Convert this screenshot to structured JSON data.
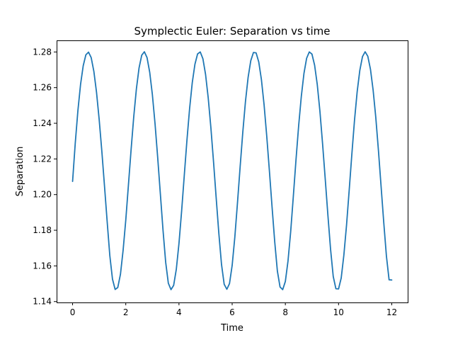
{
  "chart_data": {
    "type": "line",
    "title": "Symplectic Euler: Separation vs time",
    "xlabel": "Time",
    "ylabel": "Separation",
    "xlim": [
      -0.6,
      12.6
    ],
    "ylim": [
      1.1395,
      1.2865
    ],
    "xticks": [
      0,
      2,
      4,
      6,
      8,
      10,
      12
    ],
    "xtick_labels": [
      "0",
      "2",
      "4",
      "6",
      "8",
      "10",
      "12"
    ],
    "yticks": [
      1.14,
      1.16,
      1.18,
      1.2,
      1.22,
      1.24,
      1.26,
      1.28
    ],
    "ytick_labels": [
      "1.14",
      "1.16",
      "1.18",
      "1.20",
      "1.22",
      "1.24",
      "1.26",
      "1.28"
    ],
    "grid": false,
    "series": [
      {
        "color": "#1f77b4",
        "x": [
          0.0,
          0.1,
          0.2,
          0.3,
          0.4,
          0.5,
          0.6,
          0.7,
          0.8,
          0.9,
          1.0,
          1.1,
          1.2,
          1.3,
          1.4,
          1.5,
          1.6,
          1.7,
          1.8,
          1.9,
          2.0,
          2.1,
          2.2,
          2.3,
          2.4,
          2.5,
          2.6,
          2.7,
          2.8,
          2.9,
          3.0,
          3.1,
          3.2,
          3.3,
          3.4,
          3.5,
          3.6,
          3.7,
          3.8,
          3.9,
          4.0,
          4.1,
          4.2,
          4.3,
          4.4,
          4.5,
          4.6,
          4.7,
          4.8,
          4.9,
          5.0,
          5.1,
          5.2,
          5.3,
          5.4,
          5.5,
          5.6,
          5.7,
          5.8,
          5.9,
          6.0,
          6.1,
          6.2,
          6.3,
          6.4,
          6.5,
          6.6,
          6.7,
          6.8,
          6.9,
          7.0,
          7.1,
          7.2,
          7.3,
          7.4,
          7.5,
          7.6,
          7.7,
          7.8,
          7.9,
          8.0,
          8.1,
          8.2,
          8.3,
          8.4,
          8.5,
          8.6,
          8.7,
          8.8,
          8.9,
          9.0,
          9.1,
          9.2,
          9.3,
          9.4,
          9.5,
          9.6,
          9.7,
          9.8,
          9.9,
          10.0,
          10.1,
          10.2,
          10.3,
          10.4,
          10.5,
          10.6,
          10.7,
          10.8,
          10.9,
          11.0,
          11.1,
          11.2,
          11.3,
          11.4,
          11.5,
          11.6,
          11.7,
          11.8,
          11.9,
          12.0
        ],
        "y": [
          1.2074,
          1.2287,
          1.2471,
          1.2618,
          1.2723,
          1.2784,
          1.2799,
          1.2768,
          1.2691,
          1.2574,
          1.2421,
          1.2243,
          1.2048,
          1.1849,
          1.1658,
          1.1526,
          1.1468,
          1.1479,
          1.1553,
          1.1688,
          1.1857,
          1.2054,
          1.2252,
          1.2437,
          1.2594,
          1.2711,
          1.2782,
          1.2801,
          1.2768,
          1.2686,
          1.2561,
          1.2398,
          1.2208,
          1.2004,
          1.1801,
          1.1621,
          1.1503,
          1.1467,
          1.1491,
          1.1581,
          1.1726,
          1.1908,
          1.2108,
          1.2305,
          1.2483,
          1.2628,
          1.2731,
          1.2789,
          1.28,
          1.2762,
          1.2674,
          1.2542,
          1.2375,
          1.2183,
          1.198,
          1.1781,
          1.1608,
          1.1497,
          1.1469,
          1.1501,
          1.1603,
          1.1761,
          1.1954,
          1.2156,
          1.235,
          1.2522,
          1.2658,
          1.2751,
          1.2797,
          1.2795,
          1.2744,
          1.2645,
          1.2504,
          1.2328,
          1.2133,
          1.1931,
          1.1736,
          1.1571,
          1.1482,
          1.1467,
          1.1513,
          1.1628,
          1.1792,
          1.199,
          1.2195,
          1.2386,
          1.2551,
          1.268,
          1.2765,
          1.28,
          1.2788,
          1.2726,
          1.2617,
          1.2467,
          1.2284,
          1.2086,
          1.1884,
          1.1693,
          1.1541,
          1.1472,
          1.1471,
          1.1532,
          1.1661,
          1.1828,
          1.2024,
          1.2226,
          1.2417,
          1.2577,
          1.2697,
          1.2774,
          1.2801,
          1.2776,
          1.2703,
          1.2586,
          1.2433,
          1.2247,
          1.2045,
          1.1843,
          1.1655,
          1.1522,
          1.1521
        ]
      }
    ]
  }
}
